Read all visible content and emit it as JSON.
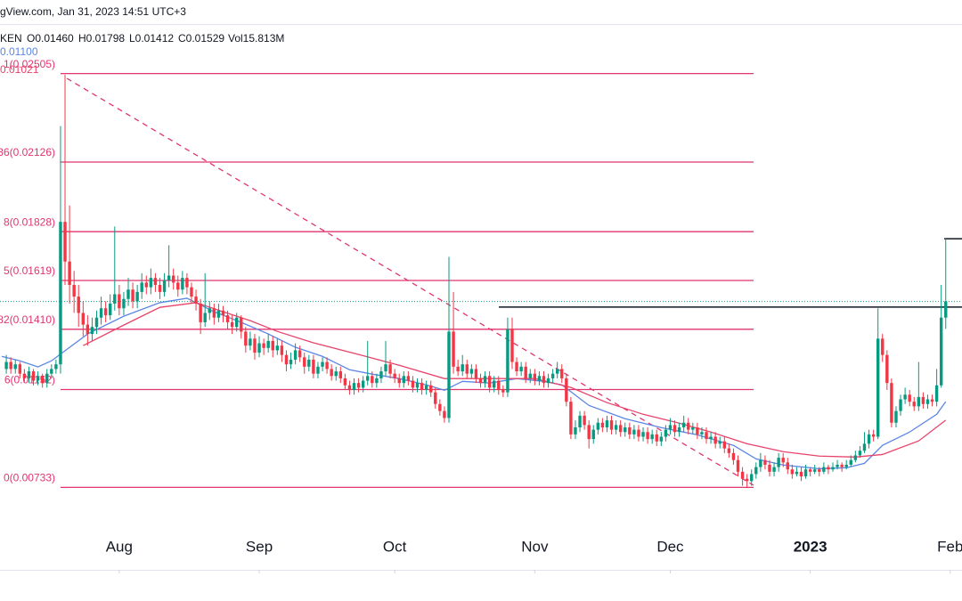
{
  "chart_data": {
    "type": "candlestick",
    "source": "gView.com, Jan 31, 2023  14:51 UTC+3",
    "legend_items": [
      "KEN",
      "O0.01460",
      "H0.01798",
      "L0.01412",
      "C0.01529",
      "Vol15.813M"
    ],
    "up_color": "#089981",
    "down_color": "#f23645",
    "xlim": [
      -1.4,
      211.6
    ],
    "xticks": [
      {
        "value": 25,
        "label": "Aug"
      },
      {
        "value": 56,
        "label": "Sep"
      },
      {
        "value": 86,
        "label": "Oct"
      },
      {
        "value": 117,
        "label": "Nov"
      },
      {
        "value": 147,
        "label": "Dec"
      },
      {
        "value": 178,
        "label": "2023"
      },
      {
        "value": 209,
        "label": "Feb"
      }
    ],
    "ylim": [
      0.0038,
      0.0282
    ],
    "open": [
      0.0124,
      0.0127,
      0.0124,
      0.0126,
      0.0122,
      0.012,
      0.0123,
      0.0119,
      0.0121,
      0.0118,
      0.0122,
      0.0124,
      0.0126,
      0.0187,
      0.017,
      0.016,
      0.0155,
      0.0148,
      0.0143,
      0.0139,
      0.0142,
      0.0146,
      0.015,
      0.0147,
      0.0152,
      0.0156,
      0.015,
      0.0154,
      0.0158,
      0.0153,
      0.0157,
      0.0161,
      0.0159,
      0.0163,
      0.016,
      0.0157,
      0.0162,
      0.0164,
      0.0161,
      0.0158,
      0.0163,
      0.0159,
      0.0155,
      0.0152,
      0.0144,
      0.0148,
      0.015,
      0.0146,
      0.0149,
      0.0147,
      0.0144,
      0.0142,
      0.0146,
      0.014,
      0.0134,
      0.0137,
      0.0131,
      0.0135,
      0.0133,
      0.0136,
      0.0132,
      0.0134,
      0.013,
      0.0126,
      0.0128,
      0.0132,
      0.0129,
      0.0125,
      0.0128,
      0.0122,
      0.0125,
      0.0127,
      0.0124,
      0.0121,
      0.0123,
      0.012,
      0.0117,
      0.0115,
      0.0118,
      0.0116,
      0.0119,
      0.0121,
      0.0118,
      0.012,
      0.0123,
      0.0126,
      0.0122,
      0.012,
      0.0118,
      0.0121,
      0.0119,
      0.0116,
      0.0118,
      0.0115,
      0.0117,
      0.0114,
      0.0109,
      0.0106,
      0.0103,
      0.014,
      0.0125,
      0.0123,
      0.0126,
      0.0122,
      0.0124,
      0.012,
      0.0118,
      0.0121,
      0.0116,
      0.0119,
      0.0115,
      0.0114,
      0.0141,
      0.0127,
      0.0123,
      0.0125,
      0.012,
      0.0122,
      0.0119,
      0.0121,
      0.0118,
      0.012,
      0.0122,
      0.0124,
      0.012,
      0.011,
      0.0096,
      0.0099,
      0.0104,
      0.01,
      0.0094,
      0.0098,
      0.0101,
      0.0099,
      0.0102,
      0.0098,
      0.01,
      0.0097,
      0.0099,
      0.0096,
      0.0098,
      0.0095,
      0.0097,
      0.0094,
      0.0096,
      0.0093,
      0.0095,
      0.0098,
      0.01,
      0.0097,
      0.0099,
      0.0101,
      0.0098,
      0.0099,
      0.0096,
      0.0097,
      0.0094,
      0.0095,
      0.0092,
      0.0093,
      0.009,
      0.0088,
      0.0085,
      0.008,
      0.0077,
      0.0076,
      0.0079,
      0.0082,
      0.0085,
      0.0083,
      0.008,
      0.0082,
      0.0086,
      0.0084,
      0.0081,
      0.0079,
      0.008,
      0.0078,
      0.0081,
      0.008,
      0.0081,
      0.008,
      0.0082,
      0.0081,
      0.0082,
      0.0083,
      0.0082,
      0.0083,
      0.0085,
      0.0087,
      0.0089,
      0.0092,
      0.0096,
      0.0095,
      0.0137,
      0.013,
      0.0118,
      0.0101,
      0.0106,
      0.0111,
      0.0113,
      0.011,
      0.0108,
      0.0112,
      0.0109,
      0.0111,
      0.011,
      0.0117,
      0.0146
    ],
    "high": [
      0.013,
      0.0129,
      0.0128,
      0.0127,
      0.0124,
      0.0125,
      0.0124,
      0.0123,
      0.0122,
      0.0124,
      0.0126,
      0.0128,
      0.0228,
      0.025,
      0.0194,
      0.0166,
      0.016,
      0.0153,
      0.0147,
      0.0146,
      0.0149,
      0.0155,
      0.0153,
      0.0156,
      0.0185,
      0.016,
      0.0157,
      0.0163,
      0.0161,
      0.016,
      0.0165,
      0.0164,
      0.0167,
      0.0165,
      0.0163,
      0.0165,
      0.0177,
      0.0167,
      0.0164,
      0.0166,
      0.0165,
      0.0161,
      0.0158,
      0.0154,
      0.0165,
      0.0153,
      0.0152,
      0.0152,
      0.0151,
      0.0149,
      0.0147,
      0.0148,
      0.0147,
      0.0142,
      0.014,
      0.0139,
      0.0138,
      0.0137,
      0.0139,
      0.0138,
      0.0137,
      0.0136,
      0.0132,
      0.0131,
      0.0135,
      0.0134,
      0.0131,
      0.013,
      0.013,
      0.0127,
      0.0129,
      0.0129,
      0.0126,
      0.0125,
      0.0125,
      0.0122,
      0.0119,
      0.012,
      0.012,
      0.0121,
      0.0136,
      0.0123,
      0.0122,
      0.0125,
      0.0136,
      0.0128,
      0.0124,
      0.0122,
      0.0123,
      0.0123,
      0.0121,
      0.012,
      0.012,
      0.0119,
      0.0119,
      0.0116,
      0.0111,
      0.0108,
      0.0172,
      0.0157,
      0.0128,
      0.013,
      0.0128,
      0.0126,
      0.0126,
      0.0122,
      0.0123,
      0.0123,
      0.0121,
      0.0121,
      0.0117,
      0.0146,
      0.0146,
      0.0129,
      0.0127,
      0.0127,
      0.0124,
      0.0124,
      0.0123,
      0.0123,
      0.0122,
      0.0124,
      0.0127,
      0.0126,
      0.0122,
      0.0112,
      0.0102,
      0.0106,
      0.0106,
      0.0102,
      0.01,
      0.0103,
      0.0103,
      0.0104,
      0.0104,
      0.0102,
      0.0102,
      0.0101,
      0.0101,
      0.01,
      0.01,
      0.0099,
      0.0099,
      0.0098,
      0.0098,
      0.0097,
      0.01,
      0.0103,
      0.0102,
      0.0101,
      0.0104,
      0.0103,
      0.0101,
      0.0101,
      0.0099,
      0.0099,
      0.0097,
      0.0097,
      0.0095,
      0.0095,
      0.0092,
      0.009,
      0.0087,
      0.0082,
      0.0079,
      0.0081,
      0.0084,
      0.0088,
      0.0087,
      0.0085,
      0.0084,
      0.0088,
      0.0088,
      0.0086,
      0.0083,
      0.0082,
      0.0082,
      0.0083,
      0.0082,
      0.0083,
      0.0082,
      0.0084,
      0.0083,
      0.0084,
      0.0085,
      0.0084,
      0.0085,
      0.0087,
      0.0089,
      0.0091,
      0.0097,
      0.0098,
      0.0098,
      0.015,
      0.0139,
      0.0132,
      0.012,
      0.0108,
      0.0113,
      0.0116,
      0.0115,
      0.0112,
      0.0127,
      0.0114,
      0.0113,
      0.0113,
      0.0124,
      0.016,
      0.01798
    ],
    "low": [
      0.0122,
      0.0122,
      0.0122,
      0.012,
      0.0118,
      0.0118,
      0.0117,
      0.0117,
      0.0116,
      0.0116,
      0.012,
      0.0122,
      0.0122,
      0.016,
      0.0152,
      0.0148,
      0.0142,
      0.0138,
      0.0134,
      0.0136,
      0.0139,
      0.0143,
      0.0144,
      0.0145,
      0.0149,
      0.0147,
      0.0147,
      0.0151,
      0.015,
      0.015,
      0.0154,
      0.0156,
      0.0156,
      0.0157,
      0.0154,
      0.0155,
      0.0159,
      0.0158,
      0.0155,
      0.0156,
      0.0156,
      0.0152,
      0.0149,
      0.0139,
      0.0142,
      0.0145,
      0.0143,
      0.0144,
      0.0144,
      0.0141,
      0.0139,
      0.014,
      0.0137,
      0.0131,
      0.0132,
      0.0128,
      0.0129,
      0.013,
      0.0131,
      0.0129,
      0.013,
      0.0127,
      0.0123,
      0.0124,
      0.0126,
      0.0127,
      0.0122,
      0.0123,
      0.012,
      0.012,
      0.0123,
      0.0122,
      0.0119,
      0.0119,
      0.0118,
      0.0115,
      0.0113,
      0.0113,
      0.0114,
      0.0114,
      0.0117,
      0.0116,
      0.0116,
      0.0118,
      0.0121,
      0.012,
      0.0118,
      0.0116,
      0.0116,
      0.0117,
      0.0114,
      0.0114,
      0.0113,
      0.0113,
      0.0112,
      0.0107,
      0.0104,
      0.0101,
      0.0101,
      0.0122,
      0.0121,
      0.0121,
      0.012,
      0.012,
      0.0118,
      0.0116,
      0.0116,
      0.0114,
      0.0114,
      0.0113,
      0.0112,
      0.0112,
      0.0124,
      0.0121,
      0.0121,
      0.0118,
      0.0118,
      0.0117,
      0.0117,
      0.0116,
      0.0116,
      0.0118,
      0.012,
      0.0118,
      0.0108,
      0.0094,
      0.0094,
      0.0097,
      0.0098,
      0.009,
      0.0092,
      0.0096,
      0.0097,
      0.0097,
      0.0096,
      0.0096,
      0.0095,
      0.0095,
      0.0094,
      0.0094,
      0.0093,
      0.0093,
      0.0092,
      0.0092,
      0.0091,
      0.0091,
      0.0093,
      0.0096,
      0.0095,
      0.0095,
      0.0097,
      0.0096,
      0.0096,
      0.0094,
      0.0094,
      0.0092,
      0.0092,
      0.009,
      0.009,
      0.0088,
      0.0086,
      0.0083,
      0.0078,
      0.0074,
      0.0073,
      0.0074,
      0.0077,
      0.008,
      0.0081,
      0.0078,
      0.0078,
      0.008,
      0.0082,
      0.0079,
      0.0077,
      0.0078,
      0.0076,
      0.0077,
      0.0078,
      0.0079,
      0.0078,
      0.0079,
      0.0079,
      0.008,
      0.0081,
      0.008,
      0.0081,
      0.0082,
      0.0084,
      0.0086,
      0.0088,
      0.009,
      0.0093,
      0.0094,
      0.0127,
      0.0115,
      0.0099,
      0.0099,
      0.0104,
      0.0109,
      0.0108,
      0.0106,
      0.0106,
      0.0107,
      0.0107,
      0.0108,
      0.0108,
      0.0116,
      0.01412
    ],
    "close": [
      0.0127,
      0.0124,
      0.0126,
      0.0122,
      0.012,
      0.0123,
      0.0119,
      0.0121,
      0.0118,
      0.0122,
      0.0124,
      0.0126,
      0.0187,
      0.017,
      0.016,
      0.0155,
      0.0148,
      0.0143,
      0.0139,
      0.0142,
      0.0146,
      0.015,
      0.0147,
      0.0152,
      0.0156,
      0.015,
      0.0154,
      0.0158,
      0.0153,
      0.0157,
      0.0161,
      0.0159,
      0.0163,
      0.016,
      0.0157,
      0.0162,
      0.0164,
      0.0161,
      0.0158,
      0.0163,
      0.0159,
      0.0155,
      0.0152,
      0.0144,
      0.0148,
      0.015,
      0.0146,
      0.0149,
      0.0147,
      0.0144,
      0.0142,
      0.0146,
      0.014,
      0.0134,
      0.0137,
      0.0131,
      0.0135,
      0.0133,
      0.0136,
      0.0132,
      0.0134,
      0.013,
      0.0126,
      0.0128,
      0.0132,
      0.0129,
      0.0125,
      0.0128,
      0.0122,
      0.0125,
      0.0127,
      0.0124,
      0.0121,
      0.0123,
      0.012,
      0.0117,
      0.0115,
      0.0118,
      0.0116,
      0.0119,
      0.0121,
      0.0118,
      0.012,
      0.0123,
      0.0126,
      0.0122,
      0.012,
      0.0118,
      0.0121,
      0.0119,
      0.0116,
      0.0118,
      0.0115,
      0.0117,
      0.0114,
      0.0109,
      0.0106,
      0.0103,
      0.014,
      0.0125,
      0.0123,
      0.0126,
      0.0122,
      0.0124,
      0.012,
      0.0118,
      0.0121,
      0.0116,
      0.0119,
      0.0115,
      0.0114,
      0.0141,
      0.0127,
      0.0123,
      0.0125,
      0.012,
      0.0122,
      0.0119,
      0.0121,
      0.0118,
      0.012,
      0.0122,
      0.0124,
      0.012,
      0.011,
      0.0096,
      0.0099,
      0.0104,
      0.01,
      0.0094,
      0.0098,
      0.0101,
      0.0099,
      0.0102,
      0.0098,
      0.01,
      0.0097,
      0.0099,
      0.0096,
      0.0098,
      0.0095,
      0.0097,
      0.0094,
      0.0096,
      0.0093,
      0.0095,
      0.0098,
      0.01,
      0.0097,
      0.0099,
      0.0101,
      0.0098,
      0.0099,
      0.0096,
      0.0097,
      0.0094,
      0.0095,
      0.0092,
      0.0093,
      0.009,
      0.0088,
      0.0085,
      0.008,
      0.0077,
      0.0076,
      0.0079,
      0.0082,
      0.0085,
      0.0083,
      0.008,
      0.0082,
      0.0086,
      0.0084,
      0.0081,
      0.0079,
      0.008,
      0.0078,
      0.0081,
      0.008,
      0.0081,
      0.008,
      0.0082,
      0.0081,
      0.0082,
      0.0083,
      0.0082,
      0.0083,
      0.0085,
      0.0087,
      0.0089,
      0.0092,
      0.0096,
      0.0095,
      0.0137,
      0.013,
      0.0118,
      0.0101,
      0.0106,
      0.0111,
      0.0113,
      0.011,
      0.0108,
      0.0112,
      0.0109,
      0.0111,
      0.011,
      0.0117,
      0.0146,
      0.01529
    ],
    "moving_averages": [
      {
        "color": "#5b86e5",
        "value_label": "0.01100",
        "x": [
          -1,
          3,
          7,
          10,
          18,
          26,
          34,
          40,
          46,
          52,
          58,
          64,
          70,
          76,
          81,
          87,
          93,
          97,
          101,
          107,
          113,
          119,
          123,
          129,
          137,
          145,
          153,
          161,
          166,
          172,
          180,
          186,
          190,
          194,
          200,
          206,
          208
        ],
        "values": [
          0.01294,
          0.01275,
          0.01249,
          0.01275,
          0.0139,
          0.01466,
          0.01524,
          0.01543,
          0.01485,
          0.0144,
          0.0139,
          0.01333,
          0.01294,
          0.01237,
          0.01218,
          0.01199,
          0.01172,
          0.01149,
          0.01187,
          0.0118,
          0.01199,
          0.01187,
          0.01172,
          0.01084,
          0.01027,
          0.00989,
          0.00958,
          0.00913,
          0.00855,
          0.00829,
          0.00813,
          0.00817,
          0.00836,
          0.00913,
          0.0097,
          0.01046,
          0.011
        ]
      },
      {
        "color": "#e8436b",
        "value_label": "0.01021",
        "x": [
          17,
          26,
          34,
          42,
          48,
          54,
          60,
          68,
          78,
          87,
          97,
          107,
          117,
          125,
          133,
          141,
          149,
          156,
          164,
          172,
          180,
          188,
          194,
          202,
          208
        ],
        "values": [
          0.0134,
          0.01428,
          0.01504,
          0.01524,
          0.01485,
          0.01447,
          0.01401,
          0.01352,
          0.01302,
          0.01256,
          0.01199,
          0.01199,
          0.01199,
          0.01161,
          0.01096,
          0.01046,
          0.01008,
          0.0097,
          0.0092,
          0.00886,
          0.00867,
          0.00863,
          0.00874,
          0.00932,
          0.01021
        ]
      }
    ],
    "fib_color": "#e0356e",
    "fib_levels": [
      {
        "value": 0.02505,
        "label": "1(0.02505)"
      },
      {
        "value": 0.02126,
        "label": "36(0.02126)"
      },
      {
        "value": 0.01828,
        "label": "8(0.01828)"
      },
      {
        "value": 0.01619,
        "label": "5(0.01619)"
      },
      {
        "value": 0.0141,
        "label": "82(0.01410)"
      },
      {
        "value": 0.01152,
        "label": "6(0.01152)"
      },
      {
        "value": 0.00733,
        "label": "0(0.00733)"
      }
    ],
    "hlines": [
      0.01505,
      0.01798
    ]
  }
}
